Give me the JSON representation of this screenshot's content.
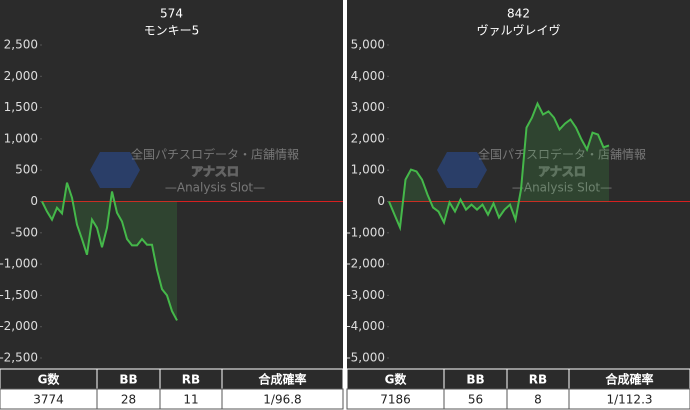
{
  "chart_data": [
    {
      "type": "line",
      "title": "574",
      "subtitle": "モンキー5",
      "color": "#45b84a",
      "zero_color": "#d62020",
      "ylim": [
        -2500,
        2500
      ],
      "yticks": [
        {
          "value": 2500,
          "label": "2,500"
        },
        {
          "value": 2000,
          "label": "2,000"
        },
        {
          "value": 1500,
          "label": "1,500"
        },
        {
          "value": 1000,
          "label": "1,000"
        },
        500,
        0,
        -500,
        {
          "value": -1000,
          "label": "-1,000"
        },
        {
          "value": -1500,
          "label": "-1,500"
        },
        {
          "value": -2000,
          "label": "-2,000"
        },
        {
          "value": -2500,
          "label": "-2,500"
        }
      ],
      "values": [
        0,
        -160,
        -290,
        -100,
        -190,
        300,
        60,
        -370,
        -600,
        -850,
        -290,
        -420,
        -730,
        -420,
        160,
        -180,
        -320,
        -600,
        -700,
        -700,
        -600,
        -690,
        -690,
        -1090,
        -1400,
        -1500,
        -1750,
        -1900
      ],
      "table": {
        "headers": [
          "G数",
          "BB",
          "RB",
          "合成確率"
        ],
        "values": [
          3774,
          28,
          11,
          "1/96.8"
        ]
      }
    },
    {
      "type": "line",
      "title": "842",
      "subtitle": "ヴァルヴレイヴ",
      "color": "#45b84a",
      "zero_color": "#d62020",
      "ylim": [
        -5000,
        5000
      ],
      "yticks": [
        {
          "value": 5000,
          "label": "5,000"
        },
        {
          "value": 4000,
          "label": "4,000"
        },
        {
          "value": 3000,
          "label": "3,000"
        },
        {
          "value": 2000,
          "label": "2,000"
        },
        {
          "value": 1000,
          "label": "1,000"
        },
        0,
        {
          "value": -1000,
          "label": "-1,000"
        },
        {
          "value": -2000,
          "label": "-2,000"
        },
        {
          "value": -3000,
          "label": "-3,000"
        },
        {
          "value": -4000,
          "label": "-4,000"
        },
        {
          "value": -5000,
          "label": "-5,000"
        }
      ],
      "values": [
        0,
        -420,
        -830,
        700,
        1020,
        960,
        700,
        220,
        -190,
        -320,
        -670,
        -30,
        -320,
        60,
        -260,
        -100,
        -260,
        -100,
        -420,
        -60,
        -510,
        -260,
        -100,
        -580,
        380,
        2360,
        2680,
        3130,
        2780,
        2880,
        2680,
        2300,
        2490,
        2620,
        2360,
        1980,
        1660,
        2200,
        2140,
        1730,
        1790
      ],
      "table": {
        "headers": [
          "G数",
          "BB",
          "RB",
          "合成確率"
        ],
        "values": [
          7186,
          56,
          8,
          "1/112.3"
        ]
      }
    }
  ],
  "watermark": {
    "title": "アナスロ",
    "subtitle": "—Analysis Slot—",
    "tagline": "全国パチスロデータ・店舗情報"
  }
}
